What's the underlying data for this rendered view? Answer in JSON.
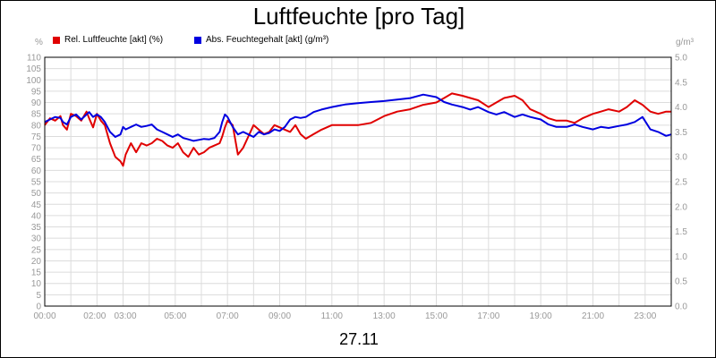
{
  "chart_data": {
    "type": "line",
    "title": "Luftfeuchte [pro Tag]",
    "date_label": "27.11",
    "y_left_unit": "%",
    "y_right_unit": "g/m³",
    "y_left_lim": [
      0,
      110
    ],
    "y_right_lim": [
      0,
      5.0
    ],
    "x_lim_hours": [
      0,
      24
    ],
    "x_ticks": [
      "00:00",
      "02:00",
      "03:00",
      "05:00",
      "07:00",
      "09:00",
      "11:00",
      "13:00",
      "15:00",
      "17:00",
      "19:00",
      "21:00",
      "23:00"
    ],
    "x_tick_hours": [
      0,
      2,
      3,
      5,
      7,
      9,
      11,
      13,
      15,
      17,
      19,
      21,
      23
    ],
    "y_left_ticks": [
      "0",
      "5",
      "10",
      "15",
      "20",
      "25",
      "30",
      "35",
      "40",
      "45",
      "50",
      "55",
      "60",
      "65",
      "70",
      "75",
      "80",
      "85",
      "90",
      "95",
      "100",
      "105",
      "110"
    ],
    "y_right_ticks": [
      "0.0",
      "0.5",
      "1.0",
      "1.5",
      "2.0",
      "2.5",
      "3.0",
      "3.5",
      "4.0",
      "4.5",
      "5.0"
    ],
    "grid": true,
    "legend_position": "top-left",
    "series": [
      {
        "name": "Rel. Luftfeuchte [akt] (%)",
        "color": "#e00000",
        "axis": "left",
        "x": [
          0,
          0.2,
          0.4,
          0.6,
          0.7,
          0.85,
          1.0,
          1.2,
          1.4,
          1.6,
          1.7,
          1.85,
          2.0,
          2.15,
          2.3,
          2.5,
          2.7,
          2.9,
          3.0,
          3.1,
          3.3,
          3.5,
          3.7,
          3.9,
          4.1,
          4.3,
          4.5,
          4.7,
          4.9,
          5.1,
          5.3,
          5.5,
          5.7,
          5.9,
          6.1,
          6.3,
          6.5,
          6.7,
          6.8,
          6.9,
          7.0,
          7.2,
          7.4,
          7.6,
          7.8,
          8.0,
          8.2,
          8.4,
          8.6,
          8.8,
          9.0,
          9.2,
          9.4,
          9.6,
          9.8,
          10.0,
          10.3,
          10.6,
          11.0,
          11.5,
          12.0,
          12.5,
          13.0,
          13.5,
          14.0,
          14.5,
          15.0,
          15.3,
          15.6,
          16.0,
          16.3,
          16.6,
          17.0,
          17.3,
          17.6,
          18.0,
          18.3,
          18.6,
          19.0,
          19.3,
          19.6,
          20.0,
          20.3,
          20.6,
          21.0,
          21.3,
          21.6,
          22.0,
          22.3,
          22.6,
          22.9,
          23.2,
          23.5,
          23.8,
          24.0
        ],
        "values": [
          80,
          83,
          82,
          84,
          80,
          78,
          85,
          84,
          82,
          86,
          83,
          79,
          85,
          82,
          80,
          72,
          66,
          64,
          62,
          67,
          72,
          68,
          72,
          71,
          72,
          74,
          73,
          71,
          70,
          72,
          68,
          66,
          70,
          67,
          68,
          70,
          71,
          72,
          75,
          79,
          82,
          80,
          67,
          70,
          75,
          80,
          78,
          76,
          77,
          80,
          79,
          78,
          77,
          80,
          76,
          74,
          76,
          78,
          80,
          80,
          80,
          81,
          84,
          86,
          87,
          89,
          90,
          92,
          94,
          93,
          92,
          91,
          88,
          90,
          92,
          93,
          91,
          87,
          85,
          83,
          82,
          82,
          81,
          83,
          85,
          86,
          87,
          86,
          88,
          91,
          89,
          86,
          85,
          86,
          86
        ]
      },
      {
        "name": "Abs. Feuchtegehalt [akt] (g/m³)",
        "color": "#0000e0",
        "axis": "right",
        "x": [
          0,
          0.2,
          0.4,
          0.6,
          0.7,
          0.85,
          1.0,
          1.2,
          1.4,
          1.6,
          1.7,
          1.85,
          2.0,
          2.15,
          2.3,
          2.5,
          2.7,
          2.9,
          3.0,
          3.1,
          3.3,
          3.5,
          3.7,
          3.9,
          4.1,
          4.3,
          4.5,
          4.7,
          4.9,
          5.1,
          5.3,
          5.5,
          5.7,
          5.9,
          6.1,
          6.3,
          6.5,
          6.7,
          6.8,
          6.9,
          7.0,
          7.2,
          7.4,
          7.6,
          7.8,
          8.0,
          8.2,
          8.4,
          8.6,
          8.8,
          9.0,
          9.2,
          9.4,
          9.6,
          9.8,
          10.0,
          10.3,
          10.6,
          11.0,
          11.5,
          12.0,
          12.5,
          13.0,
          13.5,
          14.0,
          14.5,
          15.0,
          15.3,
          15.6,
          16.0,
          16.3,
          16.6,
          17.0,
          17.3,
          17.6,
          18.0,
          18.3,
          18.6,
          19.0,
          19.3,
          19.6,
          20.0,
          20.3,
          20.6,
          21.0,
          21.3,
          21.6,
          22.0,
          22.3,
          22.6,
          22.9,
          23.2,
          23.5,
          23.8,
          24.0
        ],
        "values": [
          3.7,
          3.75,
          3.8,
          3.78,
          3.7,
          3.65,
          3.8,
          3.85,
          3.75,
          3.85,
          3.9,
          3.8,
          3.85,
          3.8,
          3.7,
          3.5,
          3.4,
          3.45,
          3.6,
          3.55,
          3.6,
          3.65,
          3.6,
          3.62,
          3.65,
          3.55,
          3.5,
          3.45,
          3.4,
          3.45,
          3.38,
          3.35,
          3.32,
          3.34,
          3.36,
          3.35,
          3.38,
          3.5,
          3.7,
          3.85,
          3.8,
          3.6,
          3.45,
          3.5,
          3.45,
          3.4,
          3.5,
          3.45,
          3.48,
          3.55,
          3.52,
          3.6,
          3.75,
          3.8,
          3.78,
          3.8,
          3.9,
          3.95,
          4.0,
          4.05,
          4.08,
          4.1,
          4.12,
          4.15,
          4.18,
          4.25,
          4.2,
          4.1,
          4.05,
          4.0,
          3.95,
          4.0,
          3.9,
          3.85,
          3.9,
          3.8,
          3.85,
          3.8,
          3.75,
          3.65,
          3.6,
          3.6,
          3.65,
          3.6,
          3.55,
          3.6,
          3.58,
          3.62,
          3.65,
          3.7,
          3.8,
          3.55,
          3.5,
          3.42,
          3.45
        ]
      }
    ]
  }
}
